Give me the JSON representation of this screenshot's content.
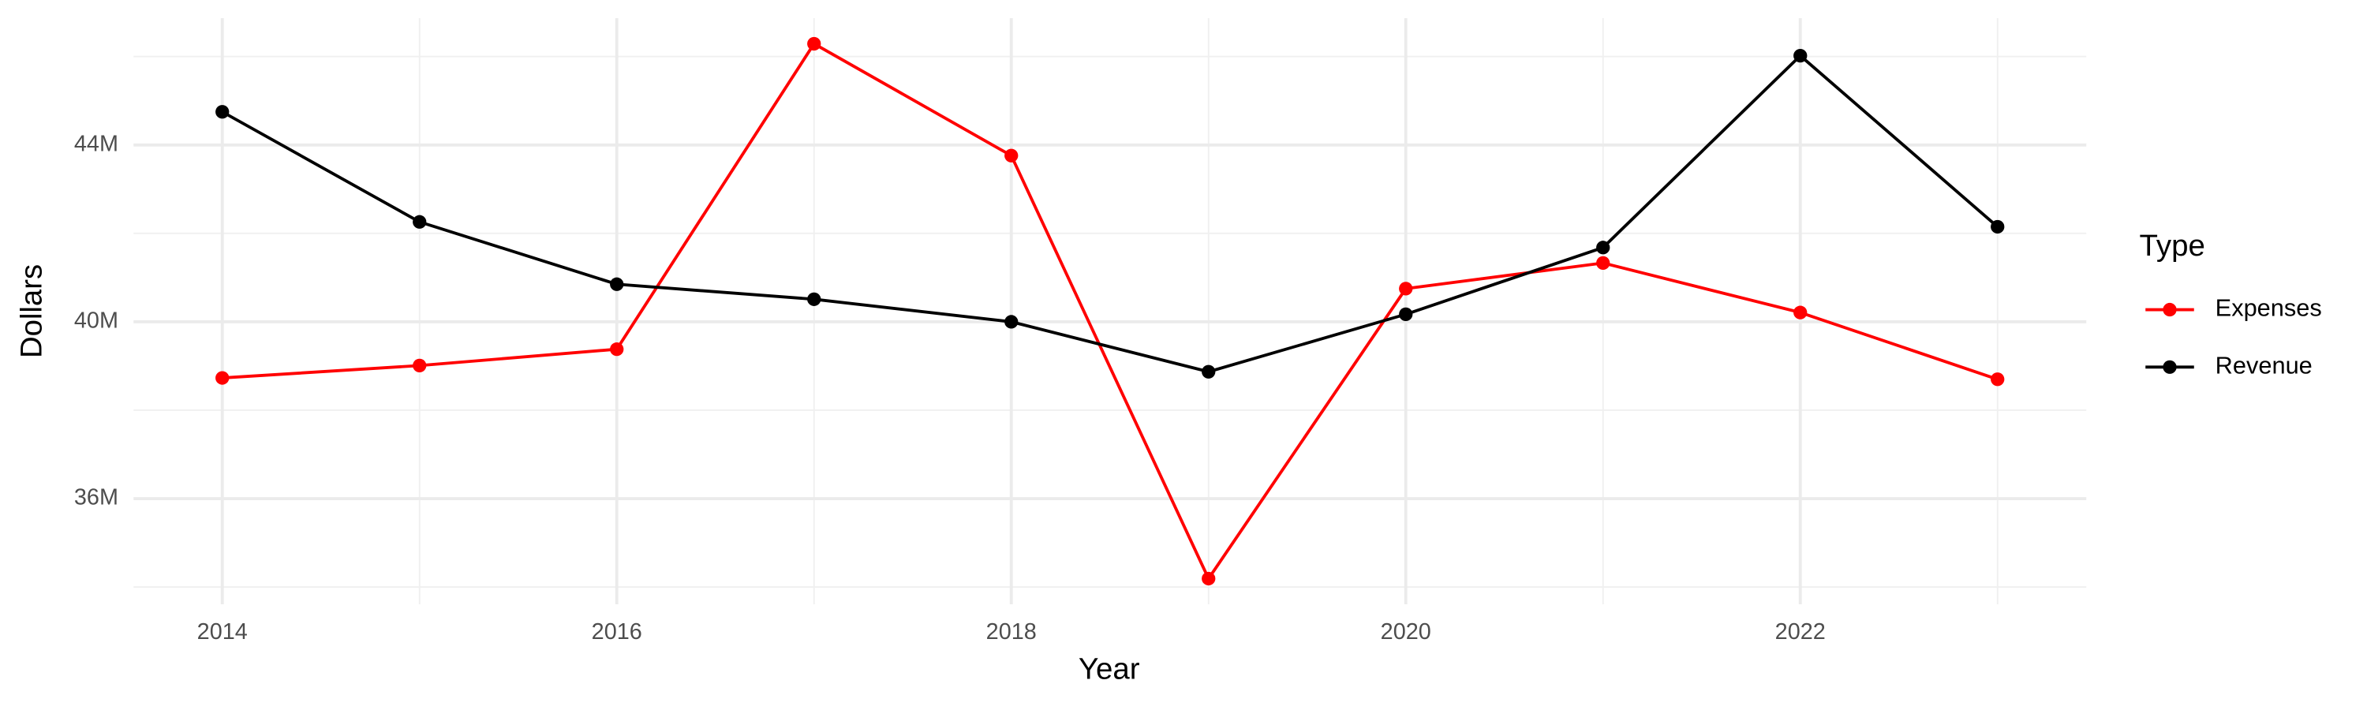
{
  "chart_data": {
    "type": "line",
    "x_label": "Year",
    "y_label": "Dollars",
    "legend_title": "Type",
    "legend_position": "right",
    "x": [
      2014,
      2015,
      2016,
      2017,
      2018,
      2019,
      2020,
      2021,
      2022,
      2023
    ],
    "series": [
      {
        "name": "Expenses",
        "color": "#ff0000",
        "values": [
          38.73,
          39.01,
          39.38,
          46.29,
          43.76,
          34.19,
          40.75,
          41.33,
          40.21,
          38.7
        ]
      },
      {
        "name": "Revenue",
        "color": "#000000",
        "values": [
          44.75,
          42.26,
          40.85,
          40.51,
          40.0,
          38.87,
          40.17,
          41.68,
          46.02,
          42.15
        ]
      }
    ],
    "xlim": [
      2013.55,
      2023.45
    ],
    "xticks": [
      2014,
      2016,
      2018,
      2020,
      2022
    ],
    "x_minor_grid": [
      2015,
      2017,
      2019,
      2021,
      2023
    ],
    "ylim": [
      33.61,
      46.87
    ],
    "yticks": [
      {
        "value": 36,
        "label": "36M"
      },
      {
        "value": 40,
        "label": "40M"
      },
      {
        "value": 44,
        "label": "44M"
      }
    ],
    "y_minor_grid": [
      34,
      38,
      42,
      46
    ],
    "grid": true
  }
}
